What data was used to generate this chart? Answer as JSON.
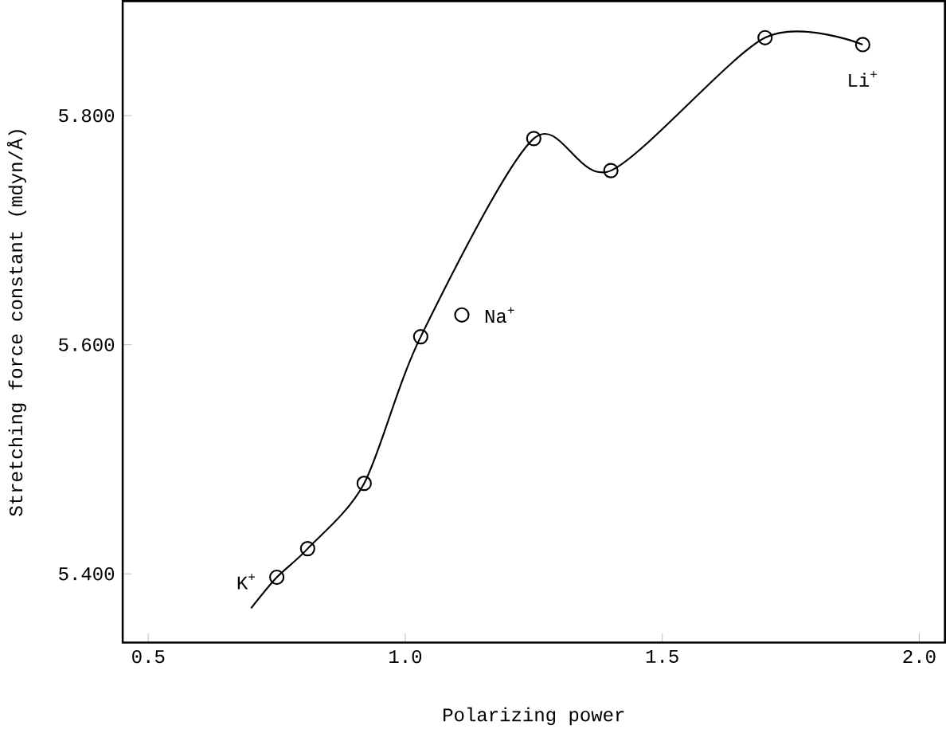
{
  "chart_data": {
    "type": "scatter",
    "xlabel": "Polarizing power",
    "ylabel": "Stretching force constant (mdyn/Å)",
    "xlim": [
      0.45,
      2.05
    ],
    "ylim": [
      5.34,
      5.9
    ],
    "xticks": [
      0.5,
      {
        "value": 1,
        "label": "1.0"
      },
      1.5,
      {
        "value": 2,
        "label": "2.0"
      }
    ],
    "yticks": [
      {
        "value": 5.4,
        "label": "5.400"
      },
      {
        "value": 5.6,
        "label": "5.600"
      },
      {
        "value": 5.8,
        "label": "5.800"
      }
    ],
    "marker": "circle",
    "series": [
      {
        "color": "#000000",
        "x": [
          0.75,
          0.81,
          0.92,
          1.03,
          1.11,
          1.25,
          1.4,
          1.7,
          1.89
        ],
        "values": [
          5.397,
          5.422,
          5.479,
          5.607,
          5.626,
          5.78,
          5.752,
          5.868,
          5.862
        ]
      },
      {
        "type": "line",
        "color": "#000000",
        "marker": "none",
        "x": [
          0.7,
          0.75,
          0.81,
          0.92,
          1.03,
          1.25,
          1.4,
          1.7,
          1.89
        ],
        "values": [
          5.37,
          5.397,
          5.422,
          5.479,
          5.607,
          5.78,
          5.752,
          5.868,
          5.862
        ]
      }
    ],
    "annotations": [
      {
        "text": "K$^{+}$",
        "x": 0.75,
        "y": 5.397
      },
      {
        "text": "Na$^{+}$",
        "x": 1.11,
        "y": 5.626
      },
      {
        "text": "Li$^{+}$",
        "x": 1.89,
        "y": 5.862
      }
    ]
  }
}
